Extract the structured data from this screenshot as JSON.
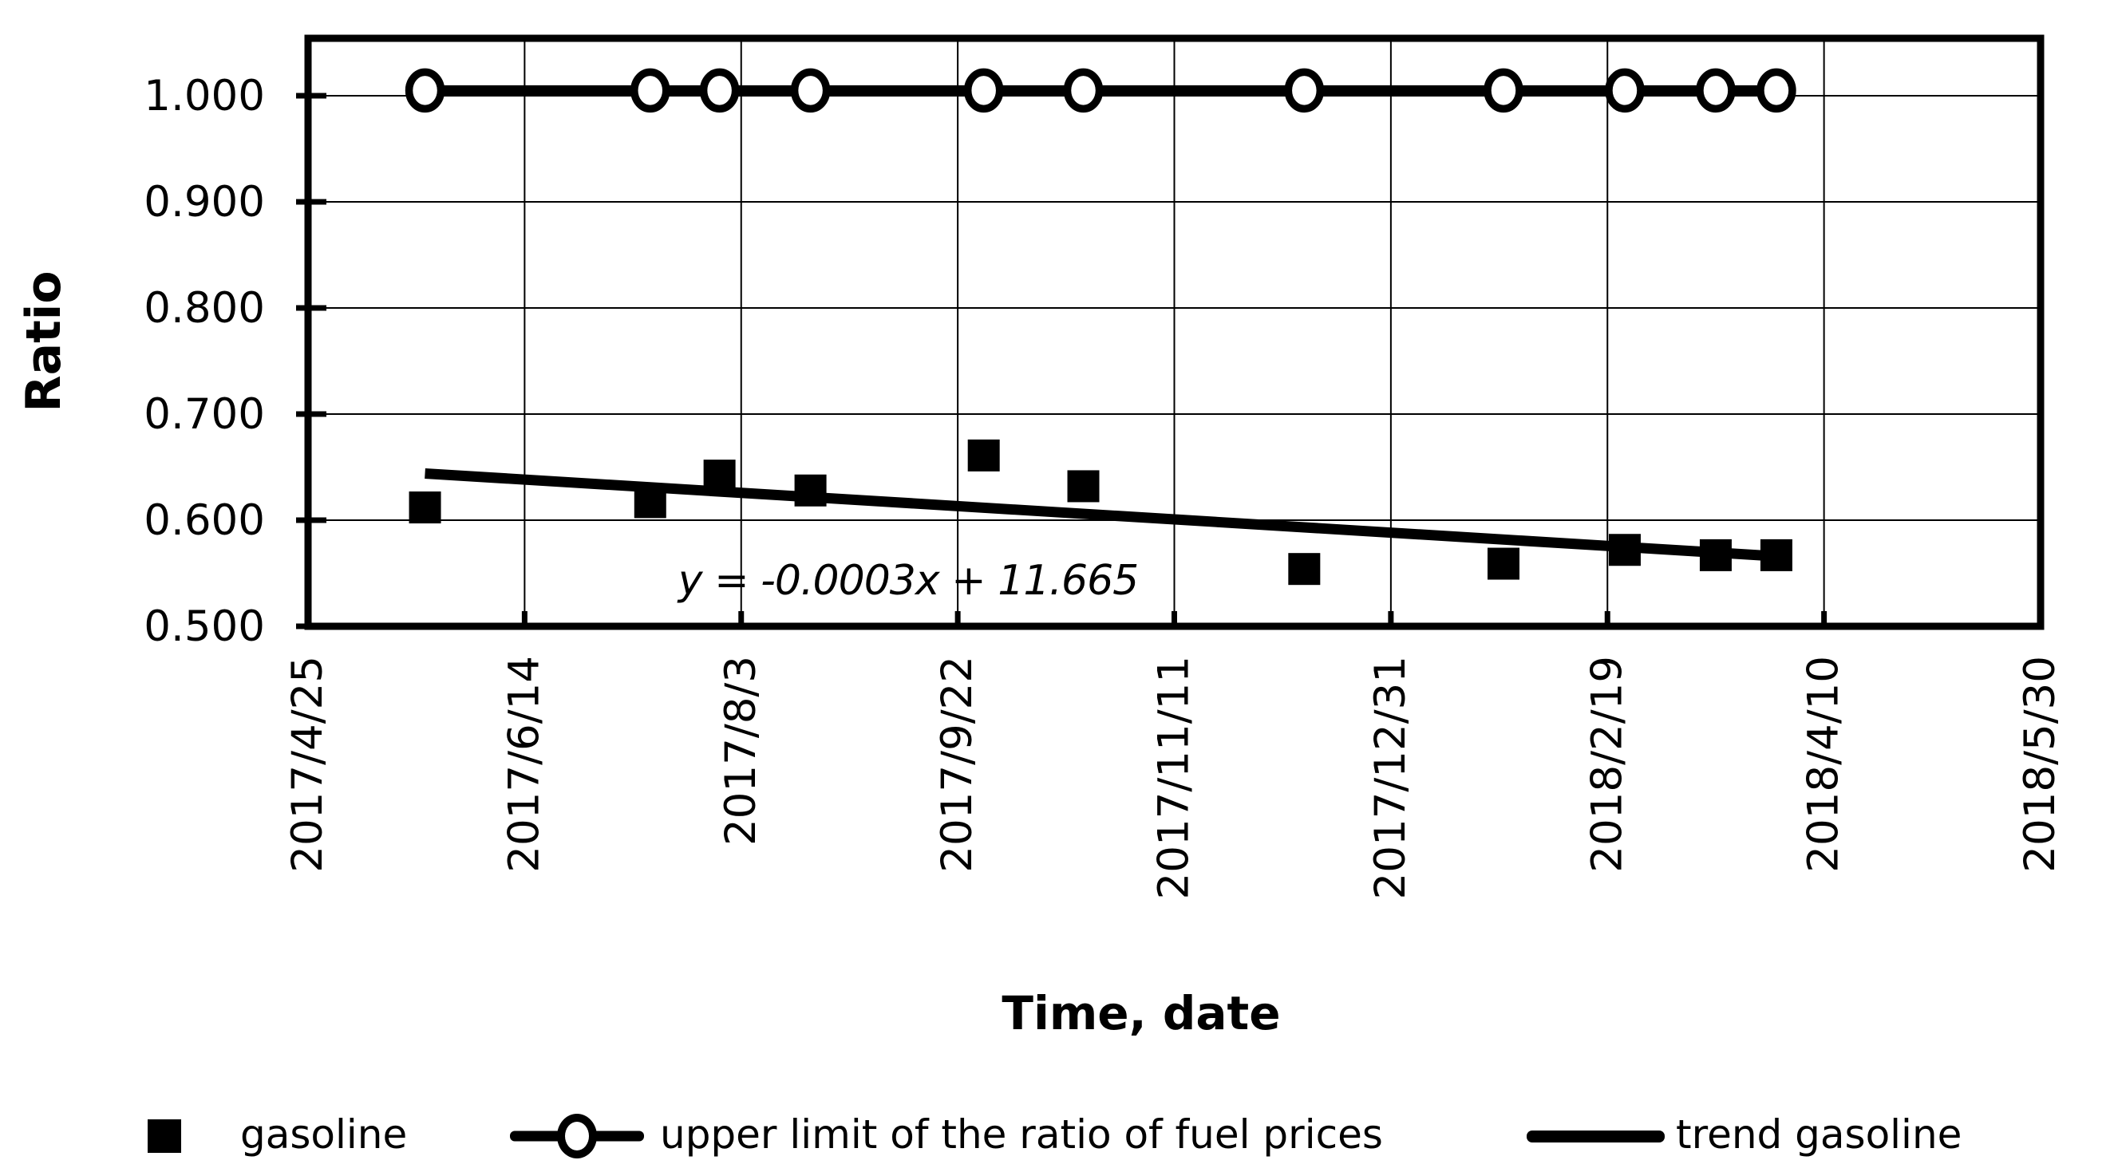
{
  "colors": {
    "foreground": "#000000",
    "background": "#ffffff"
  },
  "axis_titles": {
    "y": "Ratio",
    "x": "Time, date"
  },
  "annotation": {
    "trend_equation": "y = -0.0003x + 11.665"
  },
  "legend": {
    "position": "bottom",
    "items": [
      {
        "label": "gasoline",
        "marker": "filled-square"
      },
      {
        "label": "upper limit of the ratio of fuel prices",
        "marker": "line-open-circle"
      },
      {
        "label": "trend gasoline",
        "marker": "line"
      }
    ]
  },
  "chart_data": {
    "type": "line",
    "title": "",
    "xlabel": "Time, date",
    "ylabel": "Ratio",
    "grid": true,
    "legend_position": "bottom",
    "ylim": [
      0.5,
      1.052
    ],
    "y_ticks": {
      "labels": [
        "0.500",
        "0.600",
        "0.700",
        "0.800",
        "0.900",
        "1.000"
      ],
      "values": [
        0.5,
        0.6,
        0.7,
        0.8,
        0.9,
        1.0
      ]
    },
    "x_ticks": {
      "labels": [
        "2017/4/25",
        "2017/6/14",
        "2017/8/3",
        "2017/9/22",
        "2017/11/11",
        "2017/12/31",
        "2018/2/19",
        "2018/4/10",
        "2018/5/30"
      ],
      "days": [
        0,
        50,
        100,
        150,
        200,
        250,
        300,
        350,
        400
      ]
    },
    "series": [
      {
        "name": "gasoline",
        "type": "scatter",
        "marker": "filled-square",
        "color": "#000000",
        "points": [
          {
            "date": "2017/5/22",
            "day": 27,
            "value": 0.612
          },
          {
            "date": "2017/7/13",
            "day": 79,
            "value": 0.617
          },
          {
            "date": "2017/7/29",
            "day": 95,
            "value": 0.642
          },
          {
            "date": "2017/8/19",
            "day": 116,
            "value": 0.628
          },
          {
            "date": "2017/9/28",
            "day": 156,
            "value": 0.661
          },
          {
            "date": "2017/10/21",
            "day": 179,
            "value": 0.632
          },
          {
            "date": "2017/12/11",
            "day": 230,
            "value": 0.554
          },
          {
            "date": "2018/1/26",
            "day": 276,
            "value": 0.559
          },
          {
            "date": "2018/2/23",
            "day": 304,
            "value": 0.572
          },
          {
            "date": "2018/3/16",
            "day": 325,
            "value": 0.567
          },
          {
            "date": "2018/3/30",
            "day": 339,
            "value": 0.567
          }
        ]
      },
      {
        "name": "upper limit of the ratio of fuel prices",
        "type": "line",
        "marker": "open-circle",
        "color": "#000000",
        "constant_value": 1.005,
        "points": [
          {
            "date": "2017/5/22",
            "day": 27,
            "value": 1.005
          },
          {
            "date": "2017/7/13",
            "day": 79,
            "value": 1.005
          },
          {
            "date": "2017/7/29",
            "day": 95,
            "value": 1.005
          },
          {
            "date": "2017/8/19",
            "day": 116,
            "value": 1.005
          },
          {
            "date": "2017/9/28",
            "day": 156,
            "value": 1.005
          },
          {
            "date": "2017/10/21",
            "day": 179,
            "value": 1.005
          },
          {
            "date": "2017/12/11",
            "day": 230,
            "value": 1.005
          },
          {
            "date": "2018/1/26",
            "day": 276,
            "value": 1.005
          },
          {
            "date": "2018/2/23",
            "day": 304,
            "value": 1.005
          },
          {
            "date": "2018/3/16",
            "day": 325,
            "value": 1.005
          },
          {
            "date": "2018/3/30",
            "day": 339,
            "value": 1.005
          }
        ]
      },
      {
        "name": "trend gasoline",
        "type": "line",
        "marker": "none",
        "color": "#000000",
        "equation": "y = -0.0003x + 11.665",
        "points": [
          {
            "day": 27,
            "value": 0.644
          },
          {
            "day": 339,
            "value": 0.566
          }
        ]
      }
    ]
  }
}
